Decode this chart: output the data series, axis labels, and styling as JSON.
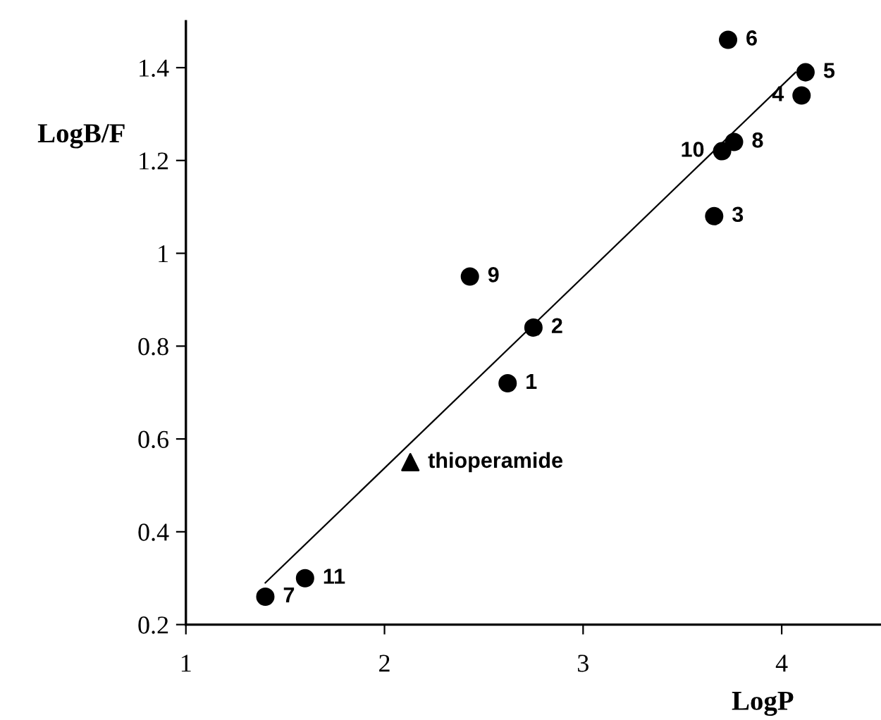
{
  "chart_data": {
    "type": "scatter",
    "xlabel": "LogP",
    "ylabel": "LogB/F",
    "xlim": [
      1,
      4.5
    ],
    "ylim": [
      0.2,
      1.5
    ],
    "xticks": [
      1,
      2,
      3,
      4
    ],
    "yticks": [
      0.2,
      0.4,
      0.6,
      0.8,
      1,
      1.2,
      1.4
    ],
    "grid": false,
    "legend": false,
    "series": [
      {
        "marker": "circle",
        "color": "#000000",
        "x": [
          2.62,
          2.75,
          3.66,
          4.1,
          4.12,
          3.73,
          1.4,
          3.76,
          2.43,
          3.7,
          1.6
        ],
        "values": [
          0.72,
          0.84,
          1.08,
          1.34,
          1.39,
          1.46,
          0.26,
          1.24,
          0.95,
          1.22,
          0.3
        ]
      },
      {
        "type": "scatter",
        "marker": "triangle",
        "color": "#000000",
        "x": [
          2.13
        ],
        "values": [
          0.55
        ]
      },
      {
        "type": "line",
        "marker": "none",
        "color": "#000000",
        "x": [
          1.4,
          4.07
        ],
        "values": [
          0.29,
          1.39
        ]
      }
    ],
    "annotations": [
      {
        "text": "1",
        "x": 2.62,
        "y": 0.72
      },
      {
        "text": "2",
        "x": 2.75,
        "y": 0.84
      },
      {
        "text": "3",
        "x": 3.66,
        "y": 1.08
      },
      {
        "text": "4",
        "x": 4.1,
        "y": 1.34
      },
      {
        "text": "5",
        "x": 4.12,
        "y": 1.39
      },
      {
        "text": "6",
        "x": 3.73,
        "y": 1.46
      },
      {
        "text": "7",
        "x": 1.4,
        "y": 0.26
      },
      {
        "text": "8",
        "x": 3.76,
        "y": 1.24
      },
      {
        "text": "9",
        "x": 2.43,
        "y": 0.95
      },
      {
        "text": "10",
        "x": 3.7,
        "y": 1.22
      },
      {
        "text": "11",
        "x": 1.6,
        "y": 0.3
      },
      {
        "text": "thioperamide",
        "x": 2.13,
        "y": 0.55
      }
    ]
  }
}
